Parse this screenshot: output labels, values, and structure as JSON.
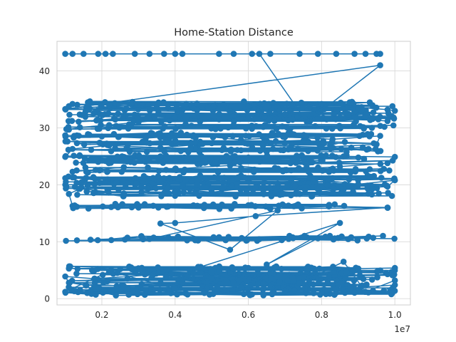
{
  "chart_data": {
    "type": "line",
    "title": "Home-Station Distance",
    "xlabel": "",
    "ylabel": "",
    "x_offset_label": "1e7",
    "xlim": [
      0.0775,
      1.0425
    ],
    "ylim": [
      -1.1,
      45.2
    ],
    "xticks": [
      0.2,
      0.4,
      0.6,
      0.8,
      1.0
    ],
    "xtick_labels": [
      "0.2",
      "0.4",
      "0.6",
      "0.8",
      "1.0"
    ],
    "yticks": [
      0,
      10,
      20,
      30,
      40
    ],
    "ytick_labels": [
      "0",
      "10",
      "20",
      "30",
      "40"
    ],
    "grid": true,
    "legend": "none",
    "marker": "circle",
    "color": "#1f77b4",
    "levels": [
      43.0,
      34.2,
      33.3,
      32.4,
      31.5,
      30.2,
      28.7,
      27.4,
      26.2,
      24.8,
      23.9,
      22.6,
      21.2,
      20.3,
      19.4,
      18.4,
      16.2,
      15.6,
      13.3,
      10.6,
      5.3,
      4.4,
      3.5,
      2.6,
      1.7,
      1.0
    ],
    "series": [
      {
        "values": [
          [
            0.1,
            43.0
          ],
          [
            0.12,
            43.0
          ],
          [
            0.15,
            43.0
          ],
          [
            0.19,
            43.0
          ],
          [
            0.21,
            43.0
          ],
          [
            0.23,
            43.0
          ],
          [
            0.29,
            43.0
          ],
          [
            0.33,
            43.0
          ],
          [
            0.37,
            43.0
          ],
          [
            0.4,
            43.0
          ],
          [
            0.42,
            43.0
          ],
          [
            0.52,
            43.0
          ],
          [
            0.56,
            43.0
          ],
          [
            0.61,
            43.0
          ],
          [
            0.66,
            43.0
          ],
          [
            0.74,
            43.0
          ],
          [
            0.79,
            43.0
          ],
          [
            0.84,
            43.0
          ],
          [
            0.89,
            43.0
          ],
          [
            0.92,
            43.0
          ],
          [
            0.95,
            43.0
          ],
          [
            0.96,
            43.0
          ],
          [
            0.63,
            43.0
          ],
          [
            0.76,
            31.0
          ],
          [
            0.96,
            41.0
          ],
          [
            0.1,
            33.3
          ],
          [
            0.11,
            33.8
          ],
          [
            0.12,
            34.2
          ],
          [
            0.22,
            34.0
          ],
          [
            0.35,
            33.6
          ],
          [
            0.46,
            33.1
          ],
          [
            0.55,
            32.9
          ],
          [
            0.65,
            34.0
          ],
          [
            0.72,
            33.9
          ],
          [
            0.8,
            34.2
          ],
          [
            0.9,
            33.6
          ],
          [
            0.98,
            33.2
          ],
          [
            1.0,
            33.0
          ],
          [
            0.98,
            31.2
          ],
          [
            0.85,
            31.8
          ],
          [
            0.7,
            32.4
          ],
          [
            0.6,
            32.0
          ],
          [
            0.52,
            31.5
          ],
          [
            0.43,
            31.8
          ],
          [
            0.3,
            31.0
          ],
          [
            0.22,
            30.5
          ],
          [
            0.14,
            30.1
          ],
          [
            0.11,
            29.7
          ],
          [
            0.1,
            28.7
          ],
          [
            0.2,
            28.5
          ],
          [
            0.32,
            28.2
          ],
          [
            0.45,
            28.7
          ],
          [
            0.58,
            27.9
          ],
          [
            0.7,
            28.4
          ],
          [
            0.83,
            28.0
          ],
          [
            0.96,
            28.6
          ],
          [
            0.95,
            27.1
          ],
          [
            0.8,
            26.6
          ],
          [
            0.64,
            26.9
          ],
          [
            0.5,
            27.3
          ],
          [
            0.36,
            26.5
          ],
          [
            0.22,
            26.9
          ],
          [
            0.12,
            26.3
          ],
          [
            0.1,
            24.9
          ],
          [
            0.24,
            24.4
          ],
          [
            0.36,
            25.0
          ],
          [
            0.48,
            24.1
          ],
          [
            0.6,
            24.8
          ],
          [
            0.72,
            24.2
          ],
          [
            0.86,
            25.0
          ],
          [
            1.0,
            24.9
          ],
          [
            0.98,
            23.8
          ],
          [
            0.85,
            23.2
          ],
          [
            0.7,
            22.6
          ],
          [
            0.55,
            23.4
          ],
          [
            0.4,
            22.8
          ],
          [
            0.26,
            23.1
          ],
          [
            0.12,
            22.3
          ],
          [
            0.12,
            21.3
          ],
          [
            0.24,
            20.4
          ],
          [
            0.34,
            21.2
          ],
          [
            0.46,
            20.0
          ],
          [
            0.58,
            21.6
          ],
          [
            0.68,
            20.2
          ],
          [
            0.78,
            21.0
          ],
          [
            0.9,
            20.1
          ],
          [
            1.0,
            20.8
          ],
          [
            0.98,
            19.7
          ],
          [
            0.86,
            19.2
          ],
          [
            0.74,
            18.4
          ],
          [
            0.62,
            19.6
          ],
          [
            0.5,
            18.7
          ],
          [
            0.38,
            19.4
          ],
          [
            0.26,
            18.5
          ],
          [
            0.14,
            19.3
          ],
          [
            0.11,
            18.4
          ],
          [
            0.12,
            16.3
          ],
          [
            0.3,
            16.0
          ],
          [
            0.48,
            16.5
          ],
          [
            0.66,
            15.8
          ],
          [
            0.82,
            16.2
          ],
          [
            0.98,
            16.0
          ],
          [
            0.62,
            14.5
          ],
          [
            0.4,
            13.3
          ],
          [
            0.36,
            13.2
          ],
          [
            0.55,
            8.6
          ],
          [
            0.68,
            15.5
          ],
          [
            0.33,
            10.5
          ],
          [
            0.52,
            10.8
          ],
          [
            0.71,
            10.5
          ],
          [
            0.79,
            10.6
          ],
          [
            0.65,
            6.0
          ],
          [
            0.85,
            13.3
          ],
          [
            0.47,
            5.6
          ],
          [
            0.25,
            5.2
          ],
          [
            0.11,
            5.3
          ],
          [
            0.28,
            5.5
          ],
          [
            0.44,
            5.0
          ],
          [
            0.6,
            5.4
          ],
          [
            0.76,
            4.9
          ],
          [
            0.9,
            5.3
          ],
          [
            1.0,
            5.4
          ],
          [
            0.98,
            4.3
          ],
          [
            0.82,
            3.8
          ],
          [
            0.66,
            4.5
          ],
          [
            0.5,
            3.6
          ],
          [
            0.34,
            4.2
          ],
          [
            0.18,
            3.5
          ],
          [
            0.1,
            3.9
          ],
          [
            0.11,
            2.8
          ],
          [
            0.26,
            2.2
          ],
          [
            0.42,
            2.9
          ],
          [
            0.58,
            2.0
          ],
          [
            0.74,
            2.7
          ],
          [
            0.88,
            1.9
          ],
          [
            1.0,
            2.4
          ],
          [
            0.97,
            1.4
          ],
          [
            0.8,
            1.0
          ],
          [
            0.64,
            1.6
          ],
          [
            0.48,
            1.0
          ],
          [
            0.32,
            1.5
          ],
          [
            0.16,
            1.0
          ],
          [
            0.1,
            1.2
          ],
          [
            0.22,
            4.8
          ],
          [
            0.4,
            1.8
          ],
          [
            0.56,
            5.2
          ],
          [
            0.7,
            1.4
          ],
          [
            0.86,
            6.5
          ],
          [
            0.92,
            1.2
          ],
          [
            1.0,
            3.2
          ]
        ]
      }
    ]
  }
}
